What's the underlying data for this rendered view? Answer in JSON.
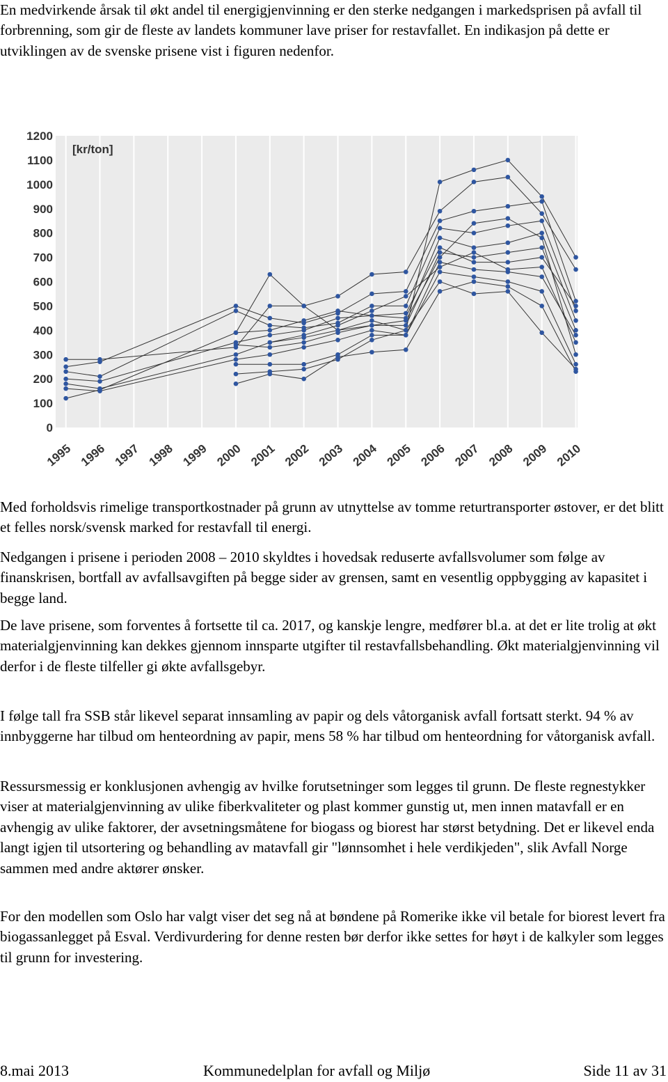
{
  "paragraphs": [
    "En medvirkende årsak til økt andel til energigjenvinning er den sterke nedgangen i markedsprisen på avfall til forbrenning, som gir de fleste av landets kommuner lave priser for restavfallet. En indikasjon på dette er utviklingen av de svenske prisene vist i figuren nedenfor.",
    "Med forholdsvis rimelige transportkostnader på grunn av utnyttelse av tomme returtransporter østover, er det blitt et felles norsk/svensk marked for restavfall til energi.",
    "Nedgangen i prisene i perioden 2008 – 2010 skyldtes i hovedsak reduserte avfallsvolumer som følge av finanskrisen, bortfall av avfallsavgiften på begge sider av grensen, samt en vesentlig oppbygging av kapasitet i begge land.",
    "De lave prisene, som forventes å fortsette til ca. 2017, og kanskje lengre, medfører bl.a. at det er lite trolig at økt materialgjenvinning kan dekkes gjennom innsparte utgifter til restavfallsbehandling. Økt materialgjenvinning vil derfor i de fleste tilfeller gi økte avfallsgebyr.",
    "I følge tall fra SSB står likevel separat innsamling av papir og dels våtorganisk avfall fortsatt sterkt. 94 % av innbyggerne har tilbud om henteordning av papir, mens 58 % har tilbud om henteordning for våtorganisk avfall.",
    "Ressursmessig er konklusjonen avhengig av hvilke forutsetninger som legges til grunn. De fleste regnestykker viser at materialgjenvinning av ulike fiberkvaliteter og plast kommer gunstig ut, men innen matavfall er en avhengig av ulike faktorer, der avsetningsmåtene for biogass og biorest har størst betydning. Det er likevel enda langt igjen til utsortering og behandling av matavfall gir \"lønnsomhet i hele verdikjeden\", slik Avfall Norge sammen med andre aktører ønsker.",
    "For den modellen som Oslo har valgt viser det seg nå at bøndene på Romerike ikke vil betale for biorest levert fra biogassanlegget på Esval. Verdivurdering for denne resten bør derfor ikke settes for høyt i de kalkyler som legges til grunn for investering."
  ],
  "chart_data": {
    "type": "line",
    "y_label": "[kr/ton]",
    "xlim": [
      1994.7,
      2010.05
    ],
    "xticks": [
      1995,
      1996,
      1997,
      1998,
      1999,
      2000,
      2001,
      2002,
      2003,
      2004,
      2005,
      2006,
      2007,
      2008,
      2009,
      2010
    ],
    "ylim": [
      0,
      1200
    ],
    "yticks": [
      0,
      100,
      200,
      300,
      400,
      500,
      600,
      700,
      800,
      900,
      1000,
      1100,
      1200
    ],
    "grid": true,
    "line_color": "#333333",
    "marker_color": "#2f56a0",
    "series": [
      {
        "x": [
          1995,
          1996,
          2000,
          2001,
          2002,
          2003,
          2004,
          2005,
          2006,
          2007,
          2008,
          2009,
          2010
        ],
        "values": [
          120,
          155,
          390,
          630,
          500,
          400,
          440,
          400,
          1010,
          1060,
          1100,
          950,
          700
        ]
      },
      {
        "x": [
          1995,
          1996,
          2000,
          2001,
          2002,
          2003,
          2004,
          2005,
          2006,
          2007,
          2008,
          2009,
          2010
        ],
        "values": [
          280,
          280,
          330,
          500,
          500,
          540,
          630,
          640,
          890,
          1010,
          1030,
          880,
          650
        ]
      },
      {
        "x": [
          1995,
          1996,
          2000,
          2001,
          2002,
          2003,
          2004,
          2005,
          2006,
          2007,
          2008,
          2009,
          2010
        ],
        "values": [
          250,
          270,
          500,
          450,
          430,
          470,
          550,
          560,
          850,
          890,
          910,
          930,
          520
        ]
      },
      {
        "x": [
          1995,
          1996,
          2000,
          2001,
          2002,
          2003,
          2004,
          2005,
          2006,
          2007,
          2008,
          2009,
          2010
        ],
        "values": [
          230,
          210,
          480,
          420,
          410,
          430,
          500,
          500,
          820,
          800,
          830,
          850,
          480
        ]
      },
      {
        "x": [
          1995,
          1996,
          2000,
          2001,
          2002,
          2003,
          2004,
          2005,
          2006,
          2007,
          2008,
          2009,
          2010
        ],
        "values": [
          200,
          190,
          350,
          380,
          400,
          450,
          460,
          450,
          780,
          740,
          760,
          800,
          440
        ]
      },
      {
        "x": [
          1995,
          1996,
          2000,
          2001,
          2002,
          2003,
          2004,
          2005,
          2006,
          2007,
          2008,
          2009,
          2010
        ],
        "values": [
          180,
          160,
          300,
          350,
          370,
          400,
          420,
          420,
          720,
          700,
          720,
          740,
          400
        ]
      },
      {
        "x": [
          1995,
          1996,
          2000,
          2001,
          2002,
          2003,
          2004,
          2005,
          2006,
          2007,
          2008,
          2009,
          2010
        ],
        "values": [
          160,
          150,
          280,
          300,
          330,
          360,
          400,
          380,
          680,
          650,
          640,
          620,
          380
        ]
      },
      {
        "x": [
          2000,
          2001,
          2002,
          2003,
          2004,
          2005,
          2006,
          2007,
          2008,
          2009,
          2010
        ],
        "values": [
          260,
          260,
          260,
          300,
          380,
          380,
          640,
          620,
          600,
          560,
          260
        ]
      },
      {
        "x": [
          2000,
          2001,
          2002,
          2003,
          2004,
          2005,
          2006,
          2007,
          2008,
          2009,
          2010
        ],
        "values": [
          220,
          230,
          240,
          280,
          360,
          400,
          600,
          550,
          560,
          390,
          240
        ]
      },
      {
        "x": [
          2000,
          2001,
          2002,
          2003,
          2004,
          2005,
          2006,
          2007,
          2008,
          2009,
          2010
        ],
        "values": [
          180,
          220,
          200,
          290,
          310,
          320,
          560,
          600,
          580,
          500,
          230
        ]
      },
      {
        "x": [
          2000,
          2001,
          2002,
          2003,
          2004,
          2005,
          2006,
          2007,
          2008,
          2009,
          2010
        ],
        "values": [
          390,
          400,
          440,
          480,
          460,
          470,
          740,
          680,
          680,
          700,
          500
        ]
      },
      {
        "x": [
          2000,
          2001,
          2002,
          2003,
          2004,
          2005,
          2006,
          2007,
          2008,
          2009,
          2010
        ],
        "values": [
          340,
          330,
          350,
          390,
          420,
          440,
          700,
          840,
          860,
          780,
          300
        ]
      },
      {
        "x": [
          2001,
          2002,
          2003,
          2004,
          2005,
          2006,
          2007,
          2008,
          2009,
          2010
        ],
        "values": [
          350,
          380,
          420,
          480,
          540,
          660,
          720,
          650,
          660,
          350
        ]
      }
    ]
  },
  "footer": {
    "date": "8.mai 2013",
    "title": "Kommunedelplan for avfall og Miljø",
    "page": "Side 11 av 31"
  }
}
